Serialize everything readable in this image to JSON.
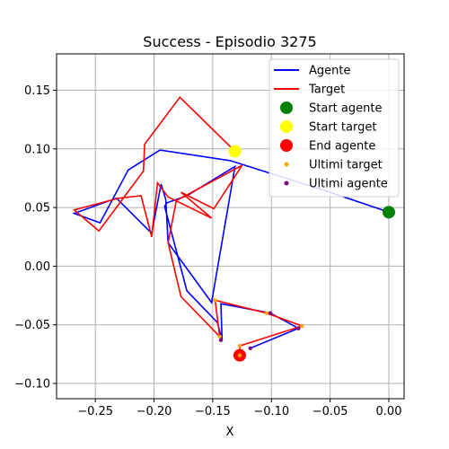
{
  "chart_data": {
    "type": "line",
    "title": "Success - Episodio 3275",
    "xlabel": "X",
    "ylabel": "Y",
    "xlim": [
      -0.283,
      0.013
    ],
    "ylim": [
      -0.113,
      0.181
    ],
    "x_ticks": [
      -0.25,
      -0.2,
      -0.15,
      -0.1,
      -0.05,
      0.0
    ],
    "x_tick_labels": [
      "−0.25",
      "−0.20",
      "−0.15",
      "−0.10",
      "−0.05",
      "0.00"
    ],
    "y_ticks": [
      -0.1,
      -0.05,
      0.0,
      0.05,
      0.1,
      0.15
    ],
    "y_tick_labels": [
      "−0.10",
      "−0.05",
      "0.00",
      "0.05",
      "0.10",
      "0.15"
    ],
    "grid": true,
    "legend_position": "top-right",
    "series": [
      {
        "name": "Agente",
        "kind": "line",
        "color": "#0000ff",
        "x": [
          0.0,
          -0.05,
          -0.135,
          -0.195,
          -0.222,
          -0.246,
          -0.268,
          -0.232,
          -0.202,
          -0.194,
          -0.19,
          -0.188,
          -0.151,
          -0.131,
          -0.172,
          -0.189,
          -0.191,
          -0.172,
          -0.146,
          -0.142,
          -0.143,
          -0.101,
          -0.077,
          -0.118
        ],
        "y": [
          0.046,
          0.063,
          0.09,
          0.099,
          0.082,
          0.037,
          0.045,
          0.058,
          0.028,
          0.07,
          0.057,
          0.02,
          -0.031,
          0.085,
          0.06,
          0.054,
          0.051,
          -0.021,
          -0.048,
          -0.063,
          -0.032,
          -0.04,
          -0.053,
          -0.07
        ]
      },
      {
        "name": "Target",
        "kind": "line",
        "color": "#ff0000",
        "x": [
          -0.131,
          -0.178,
          -0.208,
          -0.209,
          -0.247,
          -0.268,
          -0.23,
          -0.211,
          -0.202,
          -0.197,
          -0.188,
          -0.151,
          -0.177,
          -0.149,
          -0.125,
          -0.181,
          -0.188,
          -0.177,
          -0.144,
          -0.148,
          -0.104,
          -0.074,
          -0.127,
          -0.127
        ],
        "y": [
          0.098,
          0.144,
          0.104,
          0.081,
          0.03,
          0.048,
          0.058,
          0.06,
          0.025,
          0.071,
          0.059,
          0.041,
          0.063,
          0.049,
          0.086,
          0.056,
          0.02,
          -0.026,
          -0.06,
          -0.029,
          -0.04,
          -0.051,
          -0.068,
          -0.076
        ]
      }
    ],
    "markers": [
      {
        "name": "Start agente",
        "color": "#008000",
        "x": 0.0,
        "y": 0.046,
        "size": 7
      },
      {
        "name": "Start target",
        "color": "#ffff00",
        "x": -0.131,
        "y": 0.098,
        "size": 7
      },
      {
        "name": "End agente",
        "color": "#ff0000",
        "x": -0.127,
        "y": -0.076,
        "size": 7
      }
    ],
    "small_markers": [
      {
        "name": "Ultimi target",
        "color": "#ffa500",
        "points": [
          [
            -0.148,
            -0.029
          ],
          [
            -0.144,
            -0.06
          ],
          [
            -0.104,
            -0.04
          ],
          [
            -0.074,
            -0.051
          ],
          [
            -0.127,
            -0.068
          ],
          [
            -0.127,
            -0.076
          ]
        ]
      },
      {
        "name": "Ultimi agente",
        "color": "#800080",
        "points": [
          [
            -0.143,
            -0.063
          ],
          [
            -0.101,
            -0.04
          ],
          [
            -0.077,
            -0.053
          ],
          [
            -0.118,
            -0.07
          ]
        ]
      }
    ],
    "legend": [
      {
        "label": "Agente",
        "type": "line",
        "color": "#0000ff"
      },
      {
        "label": "Target",
        "type": "line",
        "color": "#ff0000"
      },
      {
        "label": "Start agente",
        "type": "big-dot",
        "color": "#008000"
      },
      {
        "label": "Start target",
        "type": "big-dot",
        "color": "#ffff00"
      },
      {
        "label": "End agente",
        "type": "big-dot",
        "color": "#ff0000"
      },
      {
        "label": "Ultimi target",
        "type": "small-dot",
        "color": "#ffa500"
      },
      {
        "label": "Ultimi agente",
        "type": "small-dot",
        "color": "#800080"
      }
    ]
  }
}
